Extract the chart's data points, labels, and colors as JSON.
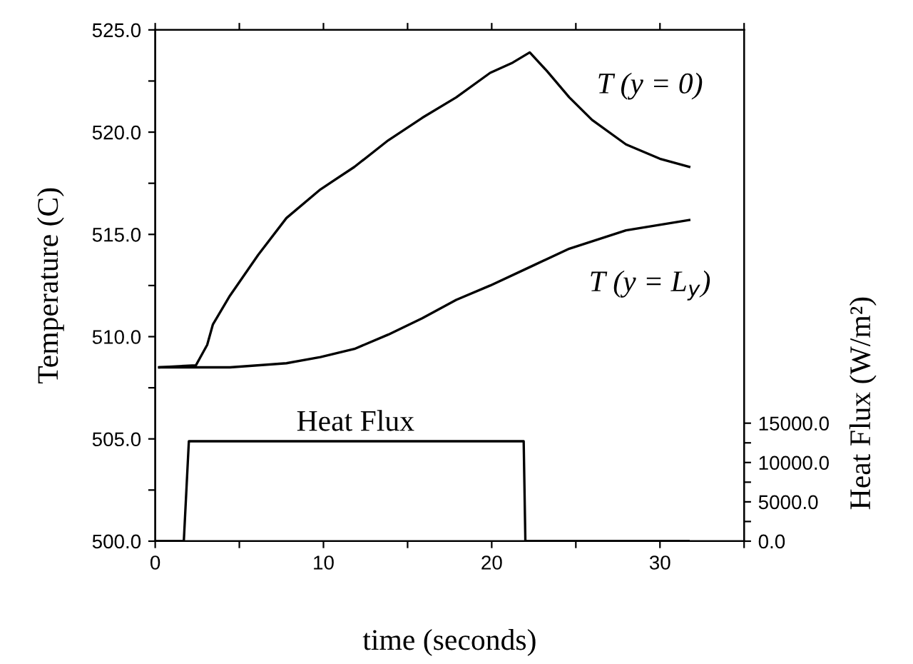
{
  "chart_data": {
    "type": "line",
    "xlabel": "time (seconds)",
    "ylabel": "Temperature (C)",
    "y2label": "Heat Flux (W/m²)",
    "xlim": [
      0,
      35
    ],
    "xticks": [
      0,
      {
        "value": 5,
        "label": null
      },
      10,
      {
        "value": 15,
        "label": null
      },
      20,
      {
        "value": 25,
        "label": null
      },
      30,
      {
        "value": 35,
        "label": null
      }
    ],
    "ylim": [
      500,
      525
    ],
    "yticks": [
      {
        "value": 500,
        "label": "500.0"
      },
      {
        "value": 502.5,
        "label": null
      },
      {
        "value": 505,
        "label": "505.0"
      },
      {
        "value": 507.5,
        "label": null
      },
      {
        "value": 510,
        "label": "510.0"
      },
      {
        "value": 512.5,
        "label": null
      },
      {
        "value": 515,
        "label": "515.0"
      },
      {
        "value": 517.5,
        "label": null
      },
      {
        "value": 520,
        "label": "520.0"
      },
      {
        "value": 522.5,
        "label": null
      },
      {
        "value": 525,
        "label": "525.0"
      }
    ],
    "y2lim": [
      0,
      65000
    ],
    "y2ticks": [
      {
        "value": 0,
        "label": "0.0"
      },
      {
        "value": 2500,
        "label": null
      },
      {
        "value": 5000,
        "label": "5000.0"
      },
      {
        "value": 7500,
        "label": null
      },
      {
        "value": 10000,
        "label": "10000.0"
      },
      {
        "value": 12500,
        "label": null
      },
      {
        "value": 15000,
        "label": "15000.0"
      }
    ],
    "series": [
      {
        "color": "#000000",
        "x": [
          0.24,
          2.42,
          3.09,
          3.43,
          4.44,
          6.12,
          7.8,
          9.82,
          11.84,
          13.85,
          15.87,
          17.89,
          19.91,
          21.25,
          22.26,
          23.27,
          24.61,
          25.96,
          27.98,
          29.99,
          31.74
        ],
        "values": [
          508.5,
          508.6,
          509.6,
          510.6,
          512.0,
          514.0,
          515.8,
          517.2,
          518.3,
          519.6,
          520.7,
          521.7,
          522.9,
          523.4,
          523.9,
          523.0,
          521.7,
          520.6,
          519.4,
          518.7,
          518.3
        ]
      },
      {
        "color": "#000000",
        "x": [
          0.24,
          4.44,
          7.8,
          9.82,
          11.84,
          13.85,
          15.87,
          17.89,
          19.91,
          22.26,
          24.61,
          27.98,
          31.74
        ],
        "values": [
          508.5,
          508.5,
          508.7,
          509.0,
          509.4,
          510.1,
          510.9,
          511.8,
          512.5,
          513.4,
          514.3,
          515.2,
          515.7
        ]
      },
      {
        "color": "#000000",
        "axis": "y2",
        "x": [
          0,
          1.7,
          2.0,
          21.9,
          22.0,
          31.7
        ],
        "values": [
          0,
          0,
          12700,
          12700,
          0,
          0
        ]
      }
    ],
    "annotations": [
      "T (y = 0)",
      "T (y = L$_{y}$)",
      "Heat Flux"
    ]
  }
}
